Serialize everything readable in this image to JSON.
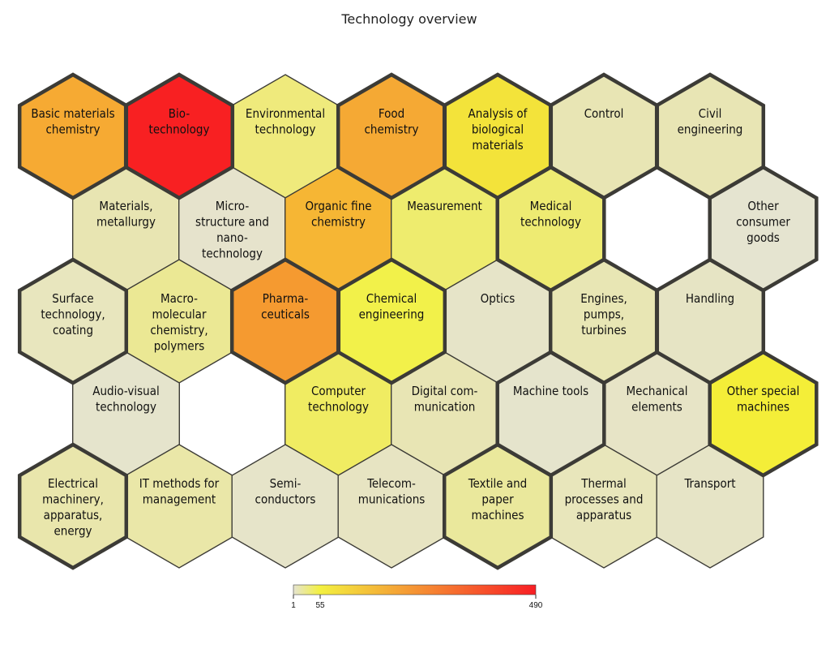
{
  "chart_data": {
    "type": "heatmap",
    "title": "Technology overview",
    "color_scale": {
      "min": 1,
      "max": 490,
      "ticks": [
        1,
        55,
        490
      ],
      "stops": [
        {
          "value": 1,
          "color": "#e5e4d0"
        },
        {
          "value": 55,
          "color": "#f3f040"
        },
        {
          "value": 490,
          "color": "#f81e24"
        }
      ]
    },
    "cells": [
      {
        "row": 0,
        "col": 0,
        "label": "Basic materials\nchemistry",
        "value": 220,
        "fill": "#f6aa33",
        "highlighted": true
      },
      {
        "row": 0,
        "col": 1,
        "label": "Bio-\ntechnology",
        "value": 490,
        "fill": "#f82022",
        "highlighted": true
      },
      {
        "row": 0,
        "col": 2,
        "label": "Environmental\ntechnology",
        "value": 40,
        "fill": "#efea7c",
        "highlighted": false
      },
      {
        "row": 0,
        "col": 3,
        "label": "Food\nchemistry",
        "value": 225,
        "fill": "#f5a934",
        "highlighted": true
      },
      {
        "row": 0,
        "col": 4,
        "label": "Analysis of\nbiological\nmaterials",
        "value": 62,
        "fill": "#f3e33a",
        "highlighted": true
      },
      {
        "row": 0,
        "col": 5,
        "label": "Control",
        "value": 15,
        "fill": "#e8e5b4",
        "highlighted": true
      },
      {
        "row": 0,
        "col": 6,
        "label": "Civil\nengineering",
        "value": 15,
        "fill": "#e8e5b4",
        "highlighted": true
      },
      {
        "row": 1,
        "col": 0,
        "label": "Materials,\nmetallurgy",
        "value": 15,
        "fill": "#e8e5b2",
        "highlighted": false
      },
      {
        "row": 1,
        "col": 1,
        "label": "Micro-\nstructure and\nnano-\ntechnology",
        "value": 5,
        "fill": "#e6e3cc",
        "highlighted": false
      },
      {
        "row": 1,
        "col": 2,
        "label": "Organic fine\nchemistry",
        "value": 190,
        "fill": "#f6b634",
        "highlighted": false
      },
      {
        "row": 1,
        "col": 3,
        "label": "Measurement",
        "value": 45,
        "fill": "#eeec6e",
        "highlighted": false
      },
      {
        "row": 1,
        "col": 4,
        "label": "Medical\ntechnology",
        "value": 40,
        "fill": "#eeeb72",
        "highlighted": true
      },
      {
        "row": 1,
        "col": 6,
        "label": "Other\nconsumer\ngoods",
        "value": 3,
        "fill": "#e5e4d0",
        "highlighted": true
      },
      {
        "row": 2,
        "col": 0,
        "label": "Surface\ntechnology,\ncoating",
        "value": 12,
        "fill": "#e8e6be",
        "highlighted": true
      },
      {
        "row": 2,
        "col": 1,
        "label": "Macro-\nmolecular\nchemistry,\npolymers",
        "value": 30,
        "fill": "#ebe894",
        "highlighted": false
      },
      {
        "row": 2,
        "col": 2,
        "label": "Pharma-\nceuticals",
        "value": 265,
        "fill": "#f59a30",
        "highlighted": true
      },
      {
        "row": 2,
        "col": 3,
        "label": "Chemical\nengineering",
        "value": 55,
        "fill": "#f2f14a",
        "highlighted": true
      },
      {
        "row": 2,
        "col": 4,
        "label": "Optics",
        "value": 5,
        "fill": "#e6e4c8",
        "highlighted": false
      },
      {
        "row": 2,
        "col": 5,
        "label": "Engines,\npumps,\nturbines",
        "value": 15,
        "fill": "#e8e6b4",
        "highlighted": true
      },
      {
        "row": 2,
        "col": 6,
        "label": "Handling",
        "value": 8,
        "fill": "#e6e4c4",
        "highlighted": true
      },
      {
        "row": 3,
        "col": 0,
        "label": "Audio-visual\ntechnology",
        "value": 4,
        "fill": "#e5e4cc",
        "highlighted": false
      },
      {
        "row": 3,
        "col": 2,
        "label": "Computer\ntechnology",
        "value": 50,
        "fill": "#f0ec62",
        "highlighted": false
      },
      {
        "row": 3,
        "col": 3,
        "label": "Digital com-\nmunication",
        "value": 15,
        "fill": "#e8e5b4",
        "highlighted": false
      },
      {
        "row": 3,
        "col": 4,
        "label": "Machine tools",
        "value": 3,
        "fill": "#e5e4cc",
        "highlighted": true
      },
      {
        "row": 3,
        "col": 5,
        "label": "Mechanical\nelements",
        "value": 6,
        "fill": "#e7e4c6",
        "highlighted": false
      },
      {
        "row": 3,
        "col": 6,
        "label": "Other special\nmachines",
        "value": 60,
        "fill": "#f4ee38",
        "highlighted": true
      },
      {
        "row": 4,
        "col": 0,
        "label": "Electrical\nmachinery,\napparatus,\nenergy",
        "value": 20,
        "fill": "#e9e6ac",
        "highlighted": true
      },
      {
        "row": 4,
        "col": 1,
        "label": "IT methods for\nmanagement",
        "value": 22,
        "fill": "#eae7a8",
        "highlighted": false
      },
      {
        "row": 4,
        "col": 2,
        "label": "Semi-\nconductors",
        "value": 5,
        "fill": "#e6e4c9",
        "highlighted": false
      },
      {
        "row": 4,
        "col": 3,
        "label": "Telecom-\nmunications",
        "value": 8,
        "fill": "#e7e4c2",
        "highlighted": false
      },
      {
        "row": 4,
        "col": 4,
        "label": "Textile and\npaper\nmachines",
        "value": 25,
        "fill": "#eae89c",
        "highlighted": true
      },
      {
        "row": 4,
        "col": 5,
        "label": "Thermal\nprocesses and\napparatus",
        "value": 12,
        "fill": "#e8e6bb",
        "highlighted": false
      },
      {
        "row": 4,
        "col": 6,
        "label": "Transport",
        "value": 5,
        "fill": "#e6e4c6",
        "highlighted": false
      }
    ]
  }
}
